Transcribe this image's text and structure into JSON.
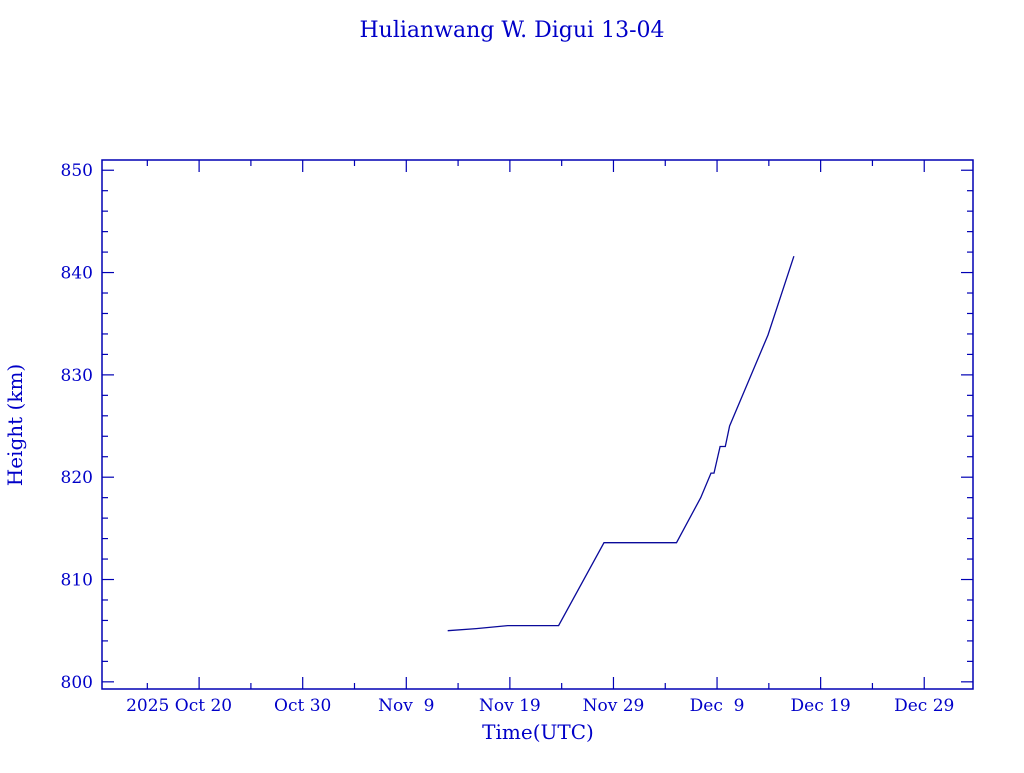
{
  "chart_data": {
    "type": "line",
    "title": "Hulianwang W. Digui 13-04",
    "xlabel": "Time(UTC)",
    "ylabel": "Height (km)",
    "xlim": [
      "2025-10-10T15:00:00Z",
      "2026-01-02T17:00:00Z"
    ],
    "ylim": [
      799.3,
      851.0
    ],
    "x_ticks": [
      {
        "date": "2025-10-20T00:00:00Z",
        "label": "2025 Oct 20"
      },
      {
        "date": "2025-10-30T00:00:00Z",
        "label": "Oct 30"
      },
      {
        "date": "2025-11-09T00:00:00Z",
        "label": "Nov  9"
      },
      {
        "date": "2025-11-19T00:00:00Z",
        "label": "Nov 19"
      },
      {
        "date": "2025-11-29T00:00:00Z",
        "label": "Nov 29"
      },
      {
        "date": "2025-12-09T00:00:00Z",
        "label": "Dec  9"
      },
      {
        "date": "2025-12-19T00:00:00Z",
        "label": "Dec 19"
      },
      {
        "date": "2025-12-29T00:00:00Z",
        "label": "Dec 29"
      }
    ],
    "y_ticks": [
      {
        "value": 800,
        "label": "800"
      },
      {
        "value": 810,
        "label": "810"
      },
      {
        "value": 820,
        "label": "820"
      },
      {
        "value": 830,
        "label": "830"
      },
      {
        "value": 840,
        "label": "840"
      },
      {
        "value": 850,
        "label": "850"
      }
    ],
    "grid": false,
    "colors": {
      "line": "#0a0a9a",
      "axes": "#0000b4",
      "text": "#0000c8"
    },
    "series": [
      {
        "x": [
          "2025-11-13T00:00:00Z",
          "2025-11-15T18:00:00Z",
          "2025-11-18T19:00:00Z",
          "2025-11-23T17:00:00Z",
          "2025-11-28T02:00:00Z",
          "2025-12-05T02:00:00Z",
          "2025-12-07T10:00:00Z",
          "2025-12-08T10:00:00Z",
          "2025-12-08T17:00:00Z",
          "2025-12-09T07:00:00Z",
          "2025-12-09T19:00:00Z",
          "2025-12-10T05:00:00Z",
          "2025-12-13T22:00:00Z",
          "2025-12-16T10:00:00Z"
        ],
        "y": [
          805.0,
          805.2,
          805.5,
          805.5,
          813.6,
          813.6,
          818.0,
          820.4,
          820.4,
          823.0,
          823.0,
          825.0,
          833.9,
          841.6
        ]
      }
    ]
  }
}
